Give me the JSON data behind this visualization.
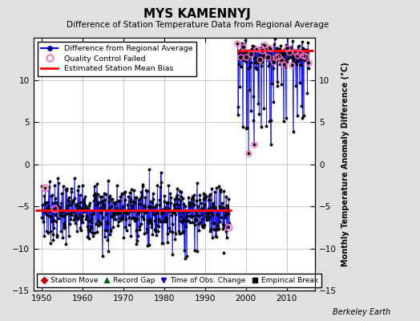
{
  "title": "MYS KAMENNYJ",
  "subtitle": "Difference of Station Temperature Data from Regional Average",
  "ylabel": "Monthly Temperature Anomaly Difference (°C)",
  "credit": "Berkeley Earth",
  "ylim": [
    -15,
    15
  ],
  "xlim": [
    1948,
    2017
  ],
  "yticks": [
    -15,
    -10,
    -5,
    0,
    5,
    10
  ],
  "xticks": [
    1950,
    1960,
    1970,
    1980,
    1990,
    2000,
    2010
  ],
  "bias1_level": -5.5,
  "bias1_start": 1948.5,
  "bias1_end": 1996.5,
  "bias2_level": 13.5,
  "bias2_start": 1998.0,
  "bias2_end": 2016.5,
  "phase1_mean": -5.5,
  "phase1_std": 1.7,
  "phase1_start": 1950.0,
  "phase1_end": 1996.0,
  "phase2_mean": 13.0,
  "phase2_std": 1.8,
  "phase2_start": 1998.0,
  "phase2_end": 2015.5,
  "seed": 7,
  "main_color": "#0000FF",
  "dot_color": "#000000",
  "qc_color": "#FF69B4",
  "bias_color": "#FF0000",
  "bg_color": "#E0E0E0",
  "plot_bg": "#FFFFFF",
  "grid_color": "#C0C0C0"
}
